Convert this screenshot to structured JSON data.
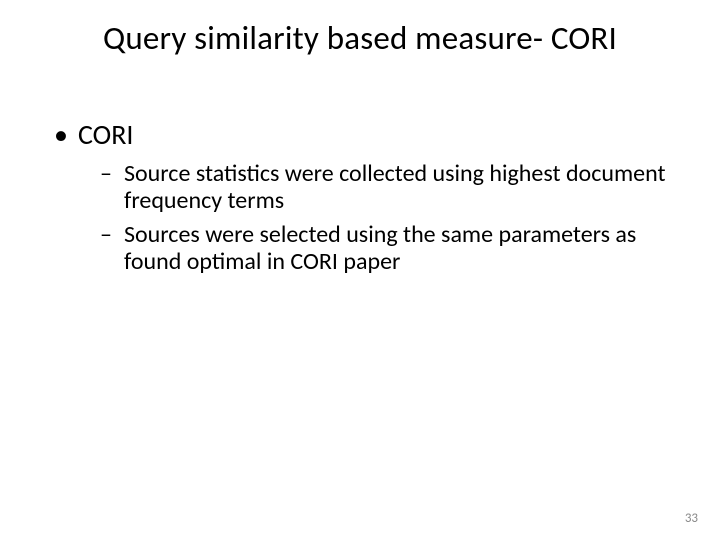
{
  "slide": {
    "title": "Query similarity based measure- CORI",
    "page_number": "33",
    "bullets": [
      {
        "label": "CORI",
        "children": [
          "Source statistics were collected using highest document frequency terms",
          "Sources were selected using the same parameters as found optimal in CORI paper"
        ]
      }
    ]
  },
  "style": {
    "background_color": "#ffffff",
    "text_color": "#000000",
    "pagenum_color": "#8a8a8a",
    "title_fontsize": 33,
    "l1_fontsize": 28,
    "l2_fontsize": 24,
    "font_family": "Calibri"
  }
}
